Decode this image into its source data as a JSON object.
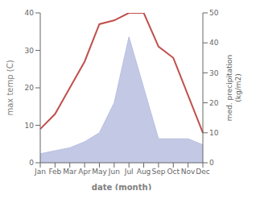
{
  "chart_data": {
    "type": "line",
    "xlabel": "date (month)",
    "ylabel": "max temp (C)",
    "y2label": "med. precipitation\n(kg/m2)",
    "categories": [
      "Jan",
      "Feb",
      "Mar",
      "Apr",
      "May",
      "Jun",
      "Jul",
      "Aug",
      "Sep",
      "Oct",
      "Nov",
      "Dec"
    ],
    "series": [
      {
        "type": "area",
        "axis": "y2",
        "color": "#b8c0e0",
        "values": [
          3,
          4,
          5,
          7,
          10,
          20,
          42,
          25,
          8,
          8,
          8,
          6
        ]
      },
      {
        "type": "line",
        "color": "#c0504d",
        "values": [
          9,
          13,
          20,
          27,
          37,
          38,
          40,
          40,
          31,
          28,
          18,
          8
        ]
      }
    ],
    "ylim": [
      0,
      40
    ],
    "yticks": [
      0,
      10,
      20,
      30,
      40
    ],
    "y2lim": [
      0,
      50
    ],
    "y2ticks": [
      0,
      10,
      20,
      30,
      40,
      50
    ],
    "grid": false
  }
}
